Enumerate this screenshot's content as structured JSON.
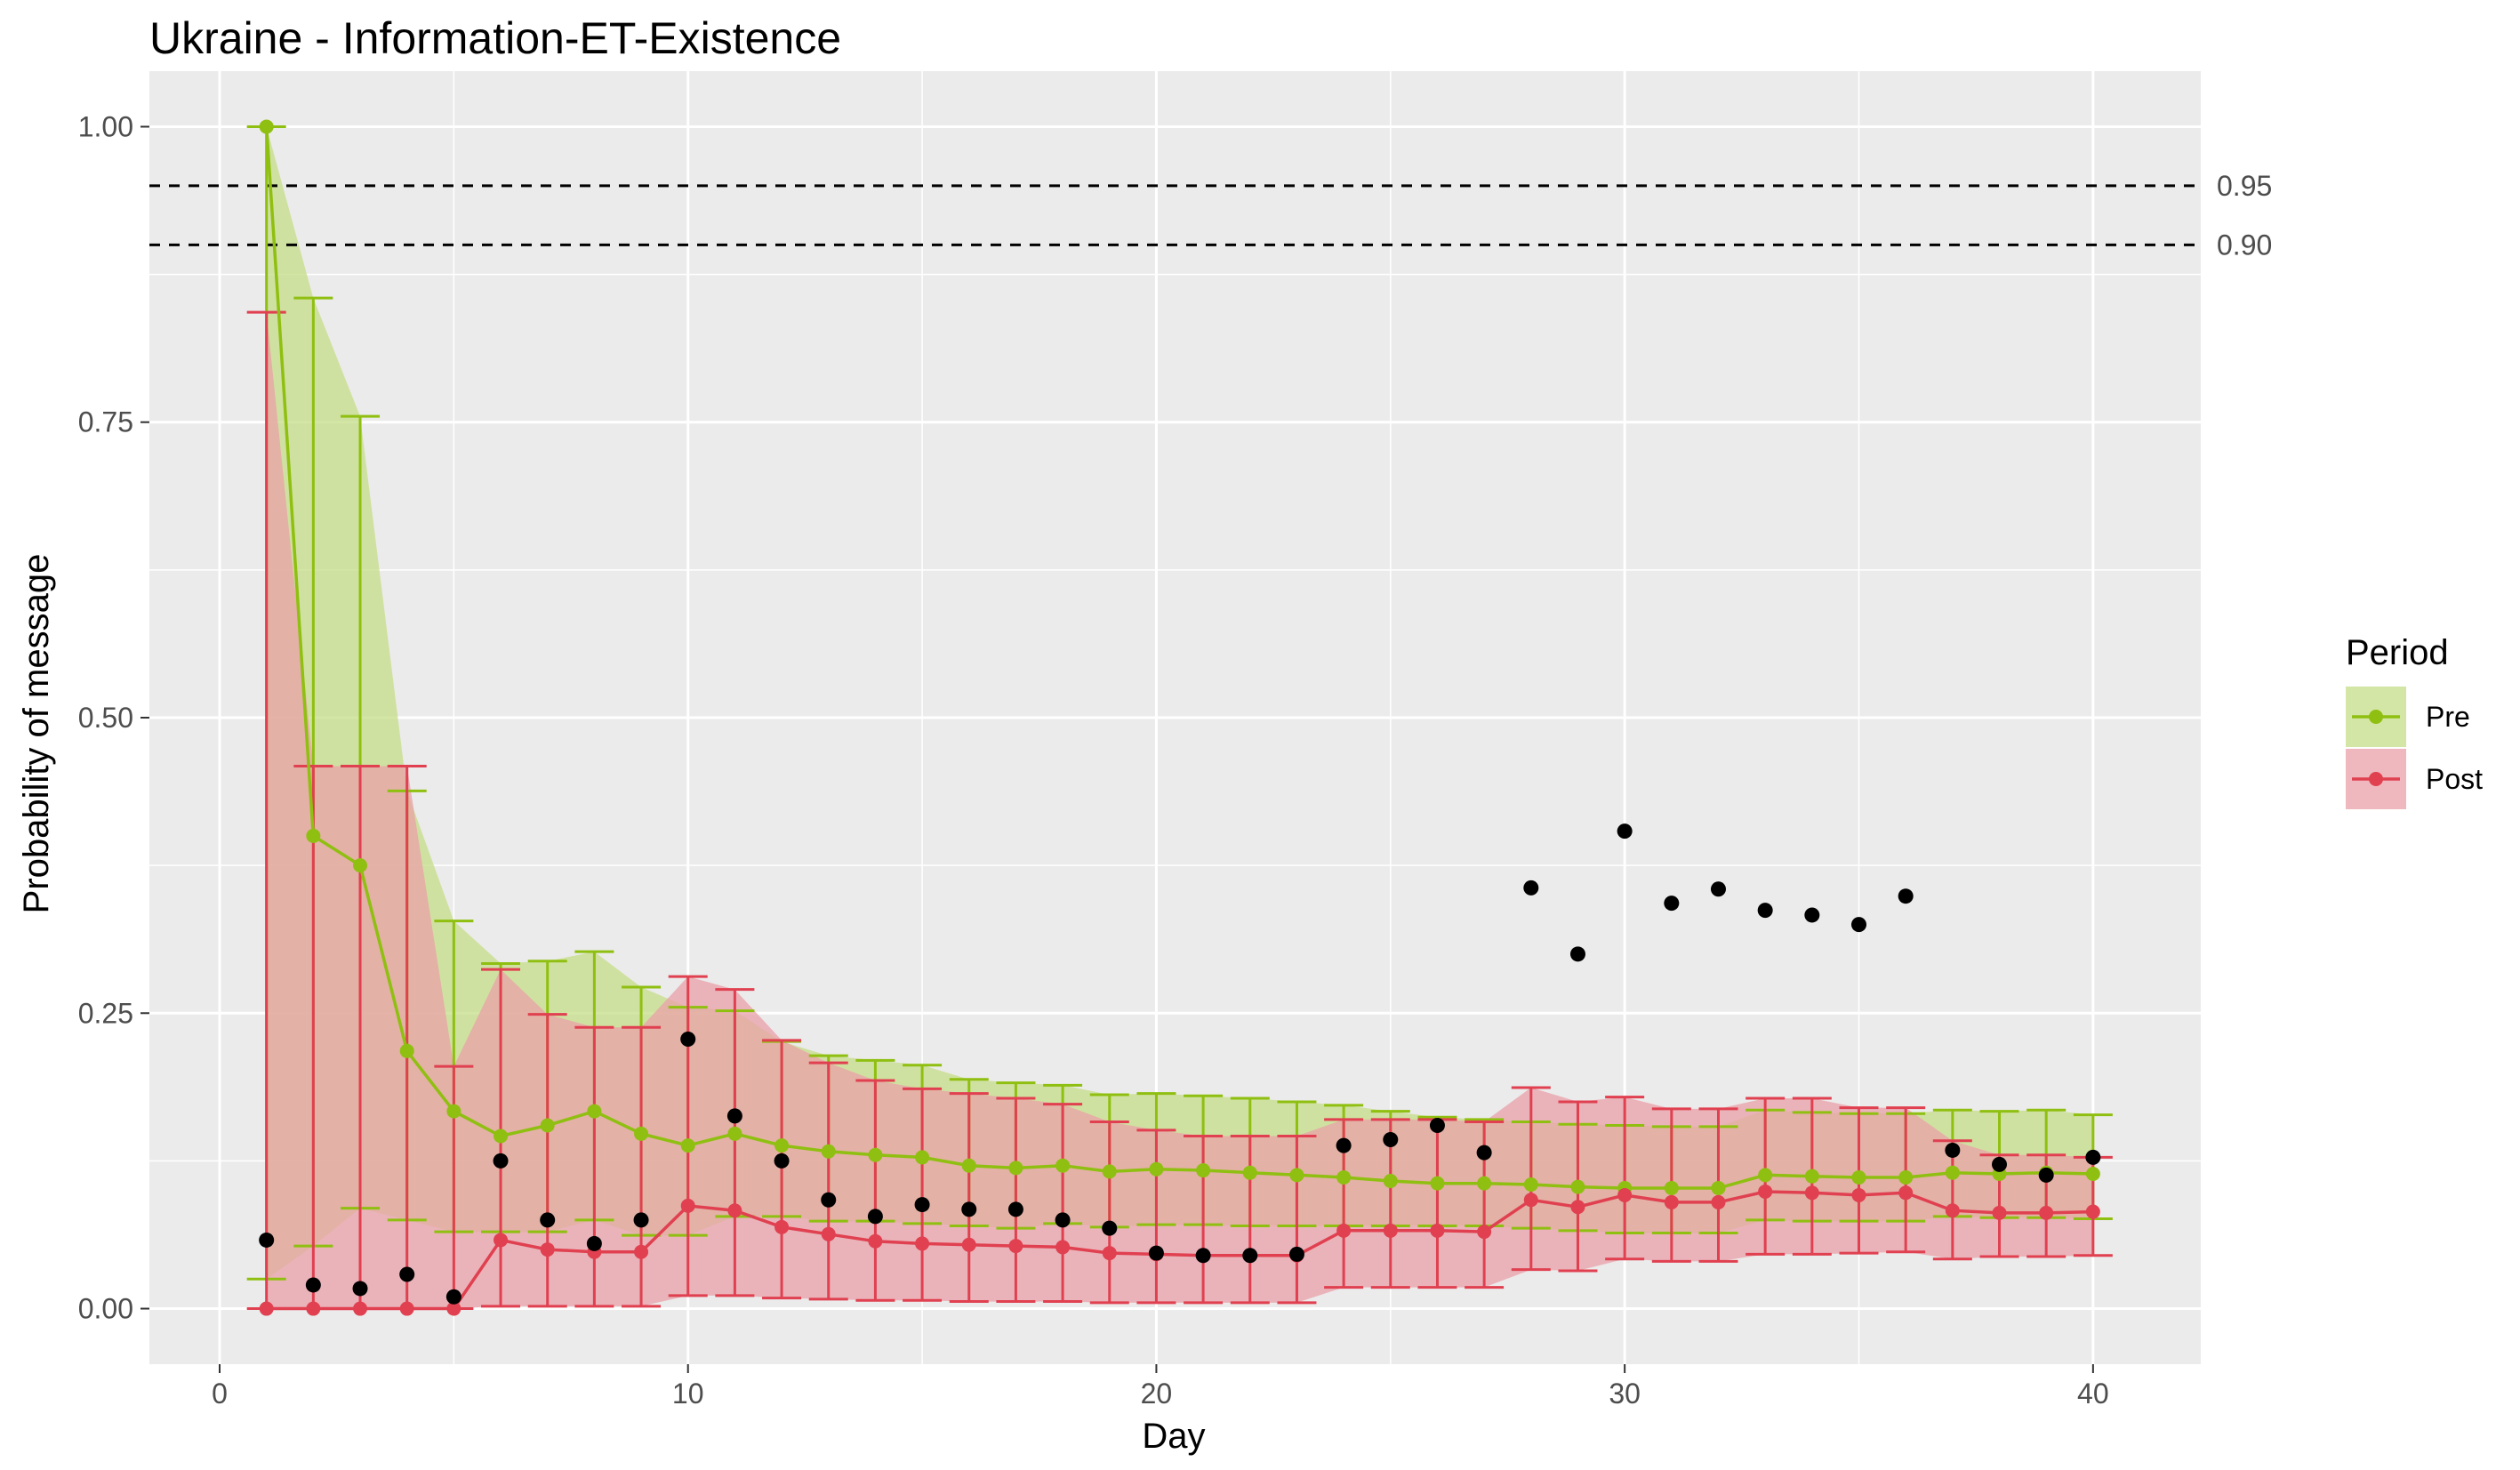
{
  "chart_data": {
    "type": "line",
    "title": "Ukraine - Information-ET-Existence",
    "xlabel": "Day",
    "ylabel": "Probability of message",
    "xlim": [
      -1.5,
      42.3
    ],
    "ylim": [
      -0.047,
      1.047
    ],
    "x_ticks": [
      0,
      10,
      20,
      30,
      40
    ],
    "x_tick_labels": [
      "0",
      "10",
      "20",
      "30",
      "40"
    ],
    "y_ticks": [
      0,
      0.25,
      0.5,
      0.75,
      1.0
    ],
    "y_tick_labels": [
      "0.00",
      "0.25",
      "0.50",
      "0.75",
      "1.00"
    ],
    "grid": true,
    "reference_lines": [
      {
        "value": 0.95,
        "label": "0.95",
        "style": "dashed"
      },
      {
        "value": 0.9,
        "label": "0.90",
        "style": "dashed"
      }
    ],
    "legend": {
      "title": "Period",
      "position": "right"
    },
    "x": [
      1,
      2,
      3,
      4,
      5,
      6,
      7,
      8,
      9,
      10,
      11,
      12,
      13,
      14,
      15,
      16,
      17,
      18,
      19,
      20,
      21,
      22,
      23,
      24,
      25,
      26,
      27,
      28,
      29,
      30,
      31,
      32,
      33,
      34,
      35,
      36,
      37,
      38,
      39,
      40
    ],
    "series": [
      {
        "name": "Pre",
        "color": "#8fbf10",
        "fill": "#c5dd87",
        "values": [
          1.0,
          0.4,
          0.375,
          0.218,
          0.167,
          0.146,
          0.155,
          0.167,
          0.148,
          0.138,
          0.148,
          0.138,
          0.133,
          0.13,
          0.128,
          0.121,
          0.119,
          0.121,
          0.116,
          0.118,
          0.117,
          0.115,
          0.113,
          0.111,
          0.108,
          0.106,
          0.106,
          0.105,
          0.103,
          0.102,
          0.102,
          0.102,
          0.113,
          0.112,
          0.111,
          0.111,
          0.115,
          0.114,
          0.115,
          0.114
        ],
        "upper": [
          1.0,
          0.855,
          0.755,
          0.438,
          0.328,
          0.292,
          0.294,
          0.302,
          0.272,
          0.255,
          0.252,
          0.226,
          0.214,
          0.21,
          0.206,
          0.194,
          0.191,
          0.189,
          0.181,
          0.182,
          0.18,
          0.178,
          0.175,
          0.172,
          0.167,
          0.162,
          0.16,
          0.158,
          0.156,
          0.155,
          0.154,
          0.154,
          0.168,
          0.166,
          0.165,
          0.165,
          0.168,
          0.167,
          0.168,
          0.164
        ],
        "lower": [
          0.025,
          0.053,
          0.085,
          0.075,
          0.065,
          0.065,
          0.065,
          0.075,
          0.062,
          0.062,
          0.078,
          0.078,
          0.074,
          0.074,
          0.072,
          0.07,
          0.068,
          0.072,
          0.069,
          0.071,
          0.071,
          0.07,
          0.07,
          0.07,
          0.07,
          0.07,
          0.07,
          0.068,
          0.066,
          0.064,
          0.064,
          0.064,
          0.075,
          0.074,
          0.074,
          0.074,
          0.078,
          0.077,
          0.077,
          0.076
        ]
      },
      {
        "name": "Post",
        "color": "#e04050",
        "fill": "#eaa0a8",
        "values": [
          0.0,
          0.0,
          0.0,
          0.0,
          0.0,
          0.058,
          0.05,
          0.048,
          0.048,
          0.087,
          0.083,
          0.069,
          0.063,
          0.057,
          0.055,
          0.054,
          0.053,
          0.052,
          0.047,
          0.046,
          0.045,
          0.045,
          0.045,
          0.066,
          0.066,
          0.066,
          0.065,
          0.092,
          0.086,
          0.096,
          0.09,
          0.09,
          0.099,
          0.098,
          0.096,
          0.098,
          0.083,
          0.081,
          0.081,
          0.082
        ],
        "upper": [
          0.843,
          0.459,
          0.459,
          0.459,
          0.205,
          0.287,
          0.249,
          0.238,
          0.238,
          0.281,
          0.27,
          0.227,
          0.208,
          0.193,
          0.186,
          0.182,
          0.178,
          0.173,
          0.158,
          0.151,
          0.146,
          0.146,
          0.146,
          0.16,
          0.16,
          0.16,
          0.158,
          0.187,
          0.175,
          0.179,
          0.169,
          0.169,
          0.178,
          0.178,
          0.17,
          0.17,
          0.142,
          0.13,
          0.13,
          0.128
        ],
        "lower": [
          0.0,
          0.0,
          0.0,
          0.0,
          0.0,
          0.002,
          0.002,
          0.002,
          0.002,
          0.011,
          0.011,
          0.009,
          0.008,
          0.007,
          0.007,
          0.006,
          0.006,
          0.006,
          0.005,
          0.005,
          0.005,
          0.005,
          0.005,
          0.018,
          0.018,
          0.018,
          0.018,
          0.033,
          0.032,
          0.042,
          0.04,
          0.04,
          0.046,
          0.046,
          0.047,
          0.048,
          0.042,
          0.044,
          0.044,
          0.045
        ]
      }
    ],
    "observed": {
      "color": "#000000",
      "values": [
        0.058,
        0.02,
        0.017,
        0.029,
        0.01,
        0.125,
        0.075,
        0.055,
        0.075,
        0.228,
        0.163,
        0.125,
        0.092,
        0.078,
        0.088,
        0.084,
        0.084,
        0.075,
        0.068,
        0.047,
        0.045,
        0.045,
        0.046,
        0.138,
        0.143,
        0.155,
        0.132,
        0.356,
        0.3,
        0.404,
        0.343,
        0.355,
        0.337,
        0.333,
        0.325,
        0.349,
        0.134,
        0.122,
        0.113,
        0.128
      ]
    }
  }
}
